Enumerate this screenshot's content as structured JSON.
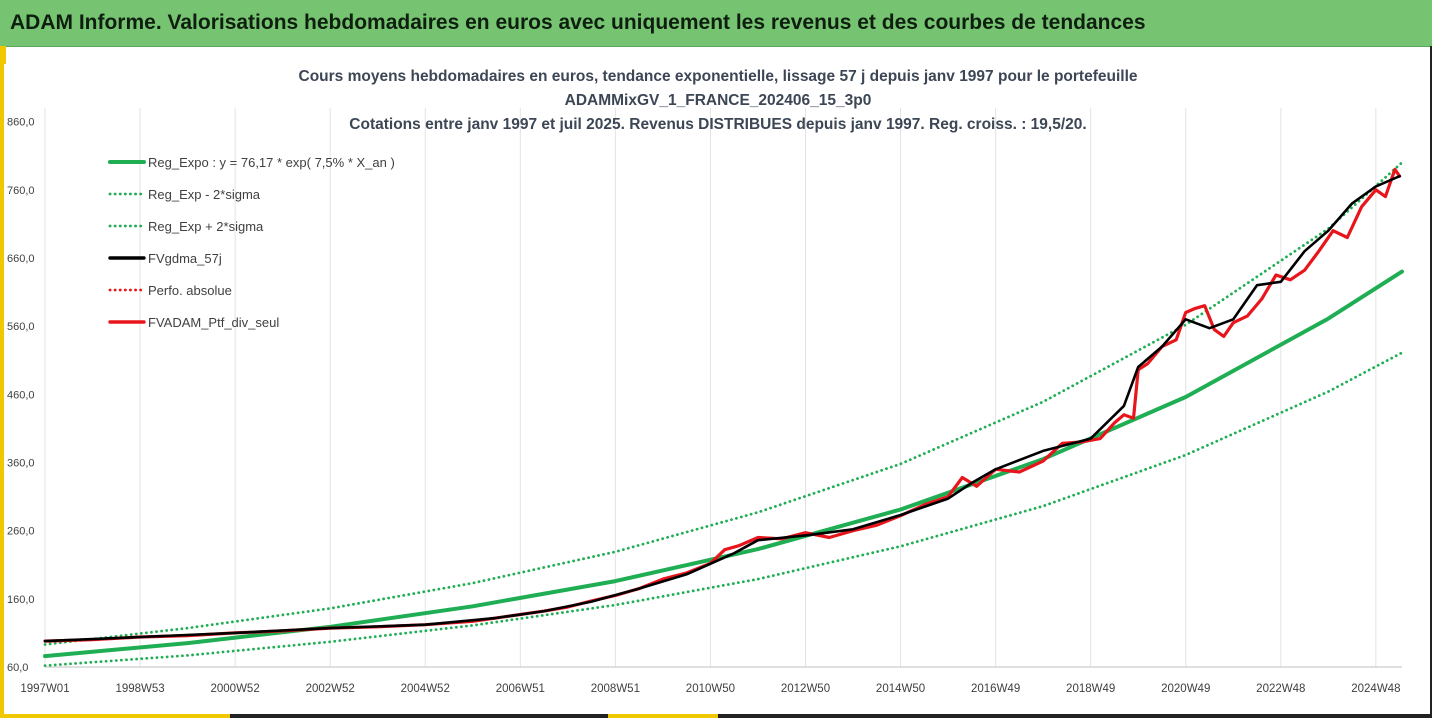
{
  "header": {
    "title": "ADAM Informe. Valorisations hebdomadaires en euros avec uniquement les revenus et des courbes de tendances"
  },
  "colors": {
    "header_bg": "#76c472",
    "green": "#1fae54",
    "red": "#e8161c",
    "black": "#000000",
    "frame_yellow": "#f0c800"
  },
  "chart_data": {
    "type": "line",
    "title_lines": [
      "Cours moyens hebdomadaires  en euros, tendance exponentielle, lissage 57 j depuis janv 1997 pour le portefeuille",
      "ADAMMixGV_1_FRANCE_202406_15_3p0",
      "Cotations entre janv 1997 et juil 2025. Revenus DISTRIBUES depuis janv 1997. Reg. croiss. : 19,5/20."
    ],
    "xlabel": "",
    "ylabel": "",
    "x_range": [
      1997.0,
      2025.55
    ],
    "ylim": [
      60,
      880
    ],
    "y_ticks": [
      "60,0",
      "160,0",
      "260,0",
      "360,0",
      "460,0",
      "560,0",
      "660,0",
      "760,0",
      "860,0"
    ],
    "y_tick_values": [
      60,
      160,
      260,
      360,
      460,
      560,
      660,
      760,
      860
    ],
    "x_ticks": [
      "1997W01",
      "1998W53",
      "2000W52",
      "2002W52",
      "2004W52",
      "2006W51",
      "2008W51",
      "2010W50",
      "2012W50",
      "2014W50",
      "2016W49",
      "2018W49",
      "2020W49",
      "2022W48",
      "2024W48"
    ],
    "x_tick_values": [
      1997.0,
      1999.0,
      2001.0,
      2003.0,
      2005.0,
      2007.0,
      2009.0,
      2011.0,
      2013.0,
      2015.0,
      2017.0,
      2019.0,
      2021.0,
      2023.0,
      2025.0
    ],
    "grid": "vertical",
    "legend_position": "top-left",
    "series": [
      {
        "name": "Reg_Expo : y = 76,17 * exp( 7,5% *  X_an )",
        "color": "#1fae54",
        "style": "solid",
        "x": [
          1997.0,
          2000.0,
          2003.0,
          2006.0,
          2009.0,
          2012.0,
          2015.0,
          2018.0,
          2021.0,
          2024.0,
          2025.55
        ],
        "values": [
          76,
          95,
          119,
          149,
          186,
          233,
          291,
          365,
          456,
          571,
          640
        ]
      },
      {
        "name": "Reg_Exp - 2*sigma",
        "color": "#1fae54",
        "style": "dotted",
        "x": [
          1997.0,
          2000.0,
          2003.0,
          2006.0,
          2009.0,
          2012.0,
          2015.0,
          2018.0,
          2021.0,
          2024.0,
          2025.55
        ],
        "values": [
          62,
          77,
          97,
          121,
          151,
          189,
          237,
          296,
          371,
          464,
          521
        ]
      },
      {
        "name": "Reg_Exp + 2*sigma",
        "color": "#1fae54",
        "style": "dotted",
        "x": [
          1997.0,
          2000.0,
          2003.0,
          2006.0,
          2009.0,
          2012.0,
          2015.0,
          2018.0,
          2021.0,
          2024.0,
          2025.55
        ],
        "values": [
          93,
          117,
          146,
          183,
          229,
          287,
          358,
          449,
          562,
          703,
          800
        ]
      },
      {
        "name": "FVgdma_57j",
        "color": "#000000",
        "style": "solid",
        "x": [
          1997.0,
          1999.0,
          2001.0,
          2003.0,
          2005.0,
          2006.5,
          2007.5,
          2008.5,
          2009.5,
          2010.5,
          2011.5,
          2012.0,
          2013.0,
          2014.0,
          2015.0,
          2016.0,
          2016.5,
          2017.0,
          2018.0,
          2019.0,
          2019.7,
          2020.0,
          2020.5,
          2021.0,
          2021.5,
          2022.0,
          2022.5,
          2023.0,
          2023.5,
          2024.0,
          2024.5,
          2025.0,
          2025.5
        ],
        "values": [
          98,
          104,
          110,
          117,
          122,
          132,
          142,
          156,
          175,
          196,
          227,
          246,
          253,
          262,
          283,
          307,
          330,
          350,
          377,
          395,
          443,
          500,
          530,
          570,
          557,
          570,
          620,
          625,
          670,
          700,
          740,
          765,
          780
        ]
      },
      {
        "name": "Perfo. absolue",
        "color": "#e8161c",
        "style": "dotted",
        "x": [],
        "values": []
      },
      {
        "name": "FVADAM_Ptf_div_seul",
        "color": "#e8161c",
        "style": "solid",
        "x": [
          1997.0,
          1998.0,
          1999.0,
          2000.0,
          2001.0,
          2002.0,
          2003.0,
          2004.0,
          2005.0,
          2006.0,
          2006.5,
          2007.0,
          2007.5,
          2008.0,
          2008.5,
          2009.0,
          2009.5,
          2010.0,
          2010.5,
          2011.0,
          2011.3,
          2011.6,
          2012.0,
          2012.5,
          2013.0,
          2013.5,
          2014.0,
          2014.5,
          2015.0,
          2015.5,
          2016.0,
          2016.3,
          2016.6,
          2017.0,
          2017.5,
          2018.0,
          2018.4,
          2018.8,
          2019.2,
          2019.5,
          2019.7,
          2019.9,
          2020.0,
          2020.2,
          2020.5,
          2020.8,
          2021.0,
          2021.2,
          2021.4,
          2021.6,
          2021.8,
          2022.0,
          2022.3,
          2022.6,
          2022.9,
          2023.2,
          2023.5,
          2023.8,
          2024.1,
          2024.4,
          2024.7,
          2025.0,
          2025.2,
          2025.4,
          2025.5
        ],
        "values": [
          98,
          100,
          104,
          106,
          110,
          113,
          117,
          119,
          122,
          127,
          132,
          137,
          142,
          148,
          157,
          165,
          175,
          189,
          198,
          212,
          232,
          238,
          250,
          248,
          257,
          250,
          260,
          268,
          282,
          298,
          310,
          338,
          325,
          350,
          346,
          362,
          388,
          390,
          395,
          418,
          430,
          425,
          496,
          505,
          530,
          540,
          580,
          586,
          590,
          555,
          545,
          565,
          575,
          600,
          635,
          628,
          642,
          670,
          700,
          690,
          735,
          760,
          750,
          790,
          780
        ]
      }
    ]
  }
}
